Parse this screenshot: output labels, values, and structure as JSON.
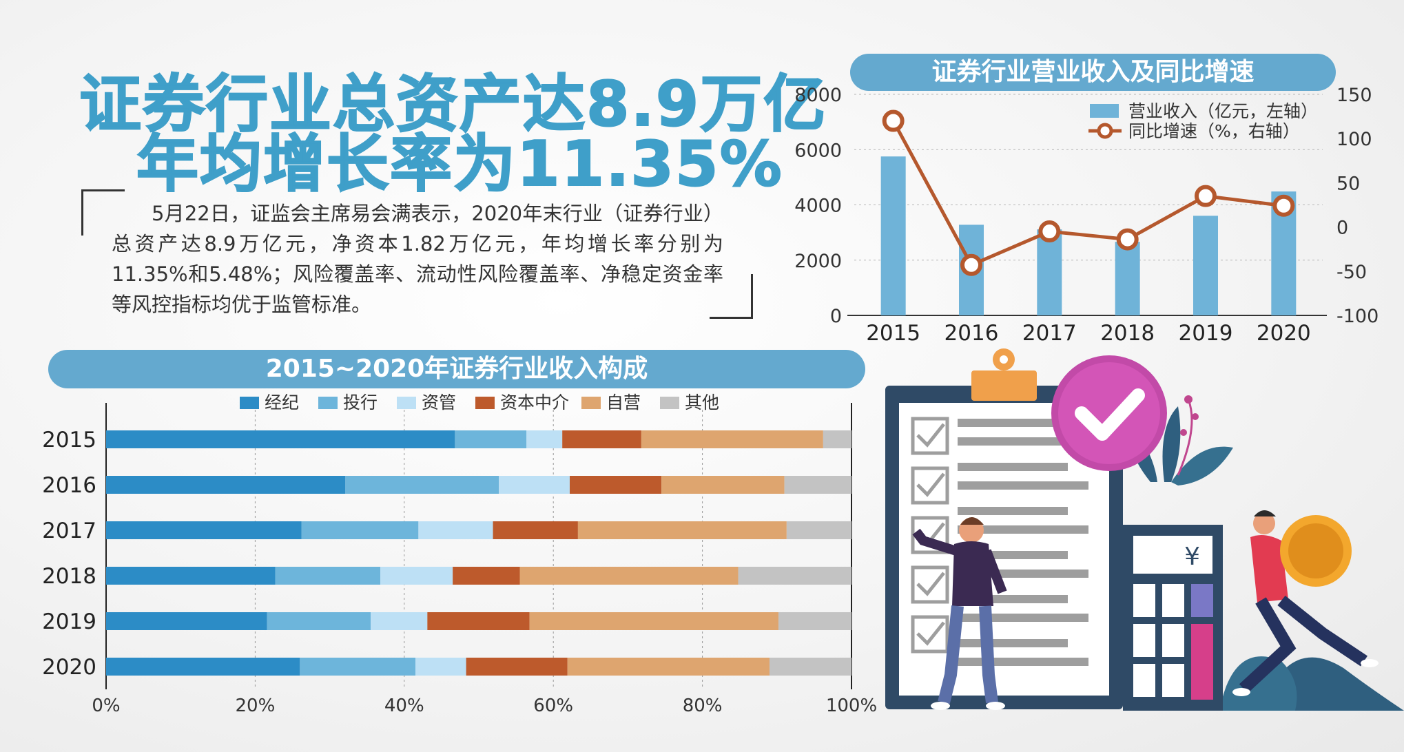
{
  "headline": {
    "line1": "证券行业总资产达8.9万亿",
    "line2": "年均增长率为11.35%"
  },
  "paragraph": "5月22日，证监会主席易会满表示，2020年末行业（证券行业）总资产达8.9万亿元，净资本1.82万亿元，年均增长率分别为11.35%和5.48%；风险覆盖率、流动性风险覆盖率、净稳定资金率等风控指标均优于监管标准。",
  "chart_data": [
    {
      "type": "bar",
      "title": "证券行业营业收入及同比增速",
      "categories": [
        "2015",
        "2016",
        "2017",
        "2018",
        "2019",
        "2020"
      ],
      "series": [
        {
          "name": "营业收入（亿元，左轴）",
          "type": "bar",
          "axis": "left",
          "color": "#6fb3d8",
          "values": [
            5752,
            3280,
            3113,
            2663,
            3605,
            4485
          ]
        },
        {
          "name": "同比增速（%，右轴）",
          "type": "line",
          "axis": "right",
          "color": "#b5582d",
          "values": [
            120,
            -43,
            -5,
            -14,
            35,
            24
          ]
        }
      ],
      "y_left": {
        "ticks": [
          "0",
          "2000",
          "4000",
          "6000",
          "8000"
        ],
        "range": [
          0,
          8000
        ]
      },
      "y_right": {
        "ticks": [
          "-100",
          "-50",
          "0",
          "50",
          "100",
          "150"
        ],
        "range": [
          -100,
          150
        ]
      },
      "legend": "top-right"
    },
    {
      "type": "bar",
      "stacked": true,
      "orientation": "horizontal",
      "title": "2015~2020年证券行业收入构成",
      "categories": [
        "2015",
        "2016",
        "2017",
        "2018",
        "2019",
        "2020"
      ],
      "x_ticks": [
        "0%",
        "20%",
        "40%",
        "60%",
        "80%",
        "100%"
      ],
      "x_range": [
        0,
        100
      ],
      "legend": "top",
      "series": [
        {
          "name": "经纪",
          "color": "#2c8cc6",
          "values": [
            46.8,
            32.1,
            26.2,
            22.7,
            21.6,
            26.0
          ]
        },
        {
          "name": "投行",
          "color": "#6db5db",
          "values": [
            9.6,
            20.6,
            15.7,
            14.1,
            13.9,
            15.5
          ]
        },
        {
          "name": "资管",
          "color": "#bde0f5",
          "values": [
            4.8,
            9.5,
            10.0,
            9.7,
            7.6,
            6.8
          ]
        },
        {
          "name": "资本中介",
          "color": "#bd5a2c",
          "values": [
            10.6,
            12.3,
            11.4,
            9.0,
            13.7,
            13.6
          ]
        },
        {
          "name": "自营",
          "color": "#dea56f",
          "values": [
            24.4,
            16.5,
            28.0,
            29.3,
            33.4,
            27.1
          ]
        },
        {
          "name": "其他",
          "color": "#c3c3c3",
          "values": [
            3.8,
            9.0,
            8.7,
            15.2,
            9.8,
            11.0
          ]
        }
      ]
    }
  ],
  "illustration": {
    "currency_symbol": "¥",
    "icons": [
      "clipboard-icon",
      "checkmark-badge-icon",
      "calculator-icon",
      "coin-icon",
      "plant-icon",
      "person-icon"
    ]
  }
}
